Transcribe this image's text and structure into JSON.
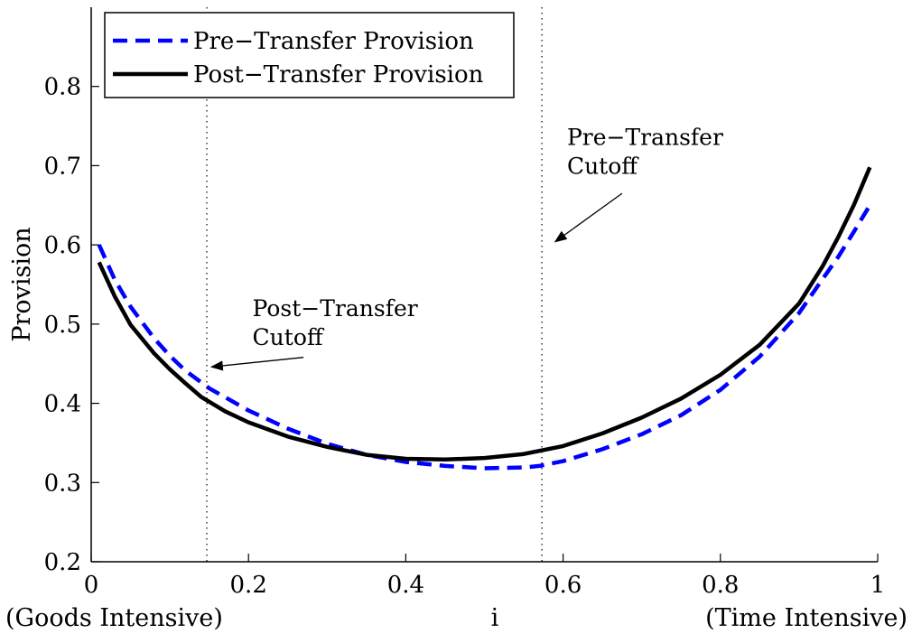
{
  "chart_data": {
    "type": "line",
    "title": "",
    "xlabel": "i",
    "ylabel": "Provision",
    "xlim": [
      0,
      1
    ],
    "ylim": [
      0.2,
      0.9
    ],
    "xticks": [
      0,
      0.2,
      0.4,
      0.6,
      0.8,
      1
    ],
    "xtick_labels": [
      "0",
      "0.2",
      "0.4",
      "0.6",
      "0.8",
      "1"
    ],
    "yticks": [
      0.2,
      0.3,
      0.4,
      0.5,
      0.6,
      0.7,
      0.8
    ],
    "ytick_labels": [
      "0.2",
      "0.3",
      "0.4",
      "0.5",
      "0.6",
      "0.7",
      "0.8"
    ],
    "x_end_labels": {
      "left": "(Goods Intensive)",
      "right": "(Time Intensive)"
    },
    "grid": false,
    "legend_position": "top-left",
    "series": [
      {
        "name": "Pre−Transfer Provision",
        "style": "dashed",
        "color": "#0000ff",
        "x": [
          0.01,
          0.03,
          0.05,
          0.08,
          0.1,
          0.12,
          0.15,
          0.2,
          0.25,
          0.3,
          0.35,
          0.4,
          0.45,
          0.5,
          0.55,
          0.57,
          0.6,
          0.65,
          0.7,
          0.75,
          0.8,
          0.85,
          0.9,
          0.93,
          0.95,
          0.97,
          0.99
        ],
        "y": [
          0.6,
          0.556,
          0.522,
          0.482,
          0.46,
          0.441,
          0.419,
          0.391,
          0.368,
          0.349,
          0.335,
          0.326,
          0.321,
          0.318,
          0.319,
          0.321,
          0.327,
          0.342,
          0.361,
          0.385,
          0.417,
          0.459,
          0.514,
          0.557,
          0.585,
          0.617,
          0.65
        ]
      },
      {
        "name": "Post−Transfer Provision",
        "style": "solid",
        "color": "#000000",
        "x": [
          0.01,
          0.03,
          0.05,
          0.08,
          0.1,
          0.12,
          0.14,
          0.17,
          0.2,
          0.25,
          0.3,
          0.35,
          0.4,
          0.45,
          0.5,
          0.55,
          0.57,
          0.6,
          0.65,
          0.7,
          0.75,
          0.8,
          0.85,
          0.9,
          0.93,
          0.95,
          0.97,
          0.99
        ],
        "y": [
          0.578,
          0.535,
          0.499,
          0.463,
          0.443,
          0.425,
          0.408,
          0.39,
          0.376,
          0.358,
          0.345,
          0.335,
          0.33,
          0.329,
          0.331,
          0.336,
          0.34,
          0.346,
          0.362,
          0.382,
          0.406,
          0.436,
          0.474,
          0.526,
          0.573,
          0.61,
          0.651,
          0.698
        ]
      }
    ],
    "vlines": [
      {
        "x": 0.147,
        "style": "dotted"
      },
      {
        "x": 0.573,
        "style": "dotted"
      }
    ],
    "annotations": [
      {
        "lines": [
          "Post−Transfer",
          "Cutoff"
        ],
        "text_at": [
          0.205,
          0.51
        ],
        "arrow_from": [
          0.27,
          0.458
        ],
        "arrow_to": [
          0.153,
          0.446
        ]
      },
      {
        "lines": [
          "Pre−Transfer",
          "Cutoff"
        ],
        "text_at": [
          0.605,
          0.726
        ],
        "arrow_from": [
          0.675,
          0.665
        ],
        "arrow_to": [
          0.59,
          0.604
        ]
      }
    ]
  }
}
